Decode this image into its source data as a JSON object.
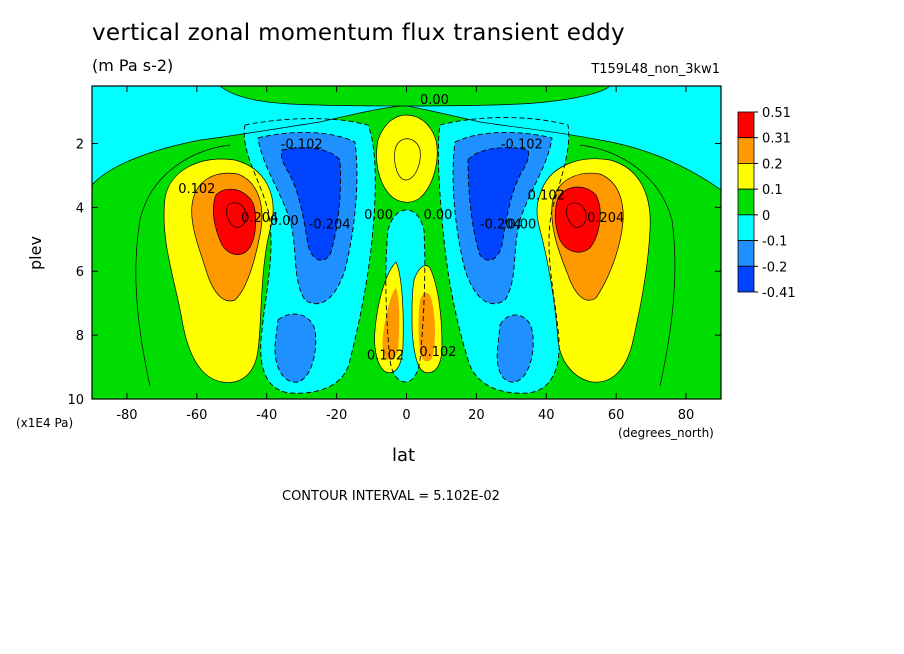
{
  "title": "vertical zonal momentum flux transient eddy",
  "units": "(m Pa s-2)",
  "run_name": "T159L48_non_3kw1",
  "contour_interval": "CONTOUR INTERVAL = 5.102E-02",
  "chart_data": {
    "type": "heatmap",
    "title": "vertical zonal momentum flux transient eddy",
    "subtitle": "(m Pa s-2)",
    "xlabel": "lat",
    "x_units": "(degrees_north)",
    "ylabel": "plev",
    "y_units": "(x1E4 Pa)",
    "xlim": [
      -90,
      90
    ],
    "ylim": [
      10,
      0.2
    ],
    "x_ticks": [
      -80,
      -60,
      -40,
      -20,
      0,
      20,
      40,
      60,
      80
    ],
    "y_ticks": [
      2,
      4,
      6,
      8,
      10
    ],
    "colorbar": {
      "labels": [
        "0.51",
        "0.31",
        "0.2",
        "0.1",
        "0",
        "-0.1",
        "-0.2",
        "-0.41"
      ],
      "colors": [
        "#ff0000",
        "#ff9900",
        "#ffff00",
        "#00dd00",
        "#00ffff",
        "#1e90ff",
        "#0044ff"
      ]
    },
    "contour_labels": [
      {
        "text": "0.00",
        "lat": 8,
        "plev": 0.6
      },
      {
        "text": "-0.102",
        "lat": -30,
        "plev": 2.0
      },
      {
        "text": "-0.102",
        "lat": 33,
        "plev": 2.0
      },
      {
        "text": "0.102",
        "lat": -60,
        "plev": 3.4
      },
      {
        "text": "0.102",
        "lat": 40,
        "plev": 3.6
      },
      {
        "text": "0.204",
        "lat": -42,
        "plev": 4.3
      },
      {
        "text": "0.204",
        "lat": 57,
        "plev": 4.3
      },
      {
        "text": "0.00",
        "lat": -35,
        "plev": 4.4
      },
      {
        "text": "-0.204",
        "lat": -22,
        "plev": 4.5
      },
      {
        "text": "-0.204",
        "lat": 27,
        "plev": 4.5
      },
      {
        "text": "0.00",
        "lat": -8,
        "plev": 4.2
      },
      {
        "text": "0.00",
        "lat": 9,
        "plev": 4.2
      },
      {
        "text": "0.00",
        "lat": 33,
        "plev": 4.5
      },
      {
        "text": "0.102",
        "lat": -6,
        "plev": 8.6
      },
      {
        "text": "0.102",
        "lat": 9,
        "plev": 8.5
      }
    ],
    "features": [
      {
        "kind": "max",
        "value": 0.51,
        "lat": -48,
        "plev": 4.1
      },
      {
        "kind": "max",
        "value": 0.51,
        "lat": 48,
        "plev": 4.1
      },
      {
        "kind": "min",
        "value": -0.41,
        "lat": -25,
        "plev": 4.5
      },
      {
        "kind": "min",
        "value": -0.41,
        "lat": 27,
        "plev": 4.5
      },
      {
        "kind": "max",
        "value": 0.2,
        "lat": 0,
        "plev": 3.0
      },
      {
        "kind": "max",
        "value": 0.31,
        "lat": -4,
        "plev": 8.4
      },
      {
        "kind": "max",
        "value": 0.31,
        "lat": 8,
        "plev": 8.4
      },
      {
        "kind": "min",
        "value": -0.2,
        "lat": -32,
        "plev": 8.6
      },
      {
        "kind": "min",
        "value": -0.2,
        "lat": 32,
        "plev": 8.6
      }
    ]
  }
}
